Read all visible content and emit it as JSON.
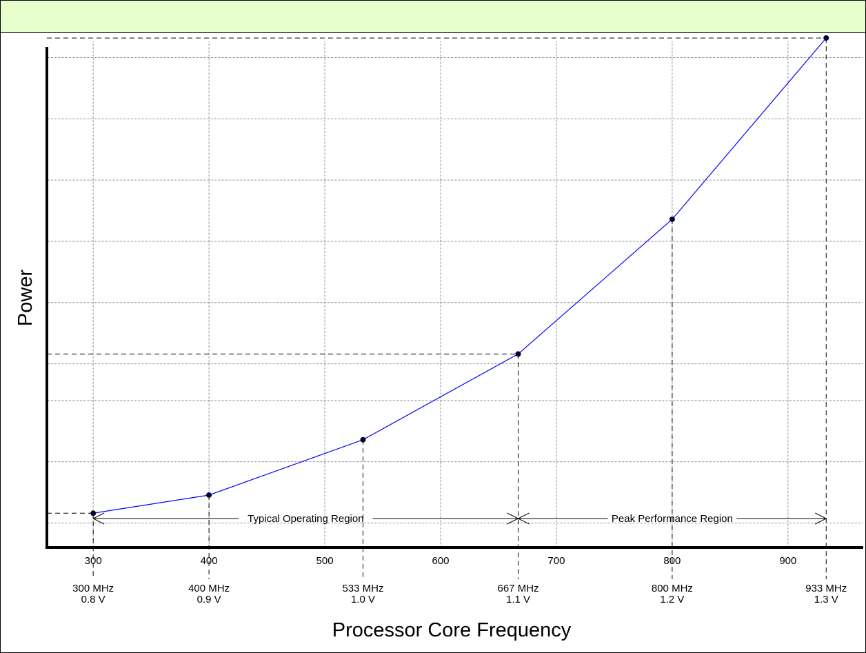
{
  "chart_data": {
    "type": "line",
    "xlabel": "Processor Core Frequency",
    "ylabel": "Power",
    "xlim": [
      260,
      965
    ],
    "ylim": [
      0,
      1.05
    ],
    "x_ticks": [
      300,
      400,
      500,
      600,
      700,
      800,
      900
    ],
    "y_gridlines": [
      0.05,
      0.175,
      0.3,
      0.375,
      0.5,
      0.625,
      0.75,
      0.875,
      1.0
    ],
    "grid": true,
    "line_color": "#0000ff",
    "series": [
      {
        "x": [
          300,
          400,
          533,
          667,
          800,
          933
        ],
        "y": [
          0.07,
          0.107,
          0.22,
          0.395,
          0.67,
          1.04
        ]
      }
    ],
    "operating_points": [
      {
        "freq": 300,
        "freq_label": "300 MHz",
        "volt_label": "0.8 V"
      },
      {
        "freq": 400,
        "freq_label": "400 MHz",
        "volt_label": "0.9 V"
      },
      {
        "freq": 533,
        "freq_label": "533 MHz",
        "volt_label": "1.0 V"
      },
      {
        "freq": 667,
        "freq_label": "667 MHz",
        "volt_label": "1.1 V"
      },
      {
        "freq": 800,
        "freq_label": "800 MHz",
        "volt_label": "1.2 V"
      },
      {
        "freq": 933,
        "freq_label": "933 MHz",
        "volt_label": "1.3 V"
      }
    ],
    "horizontal_markers": [
      {
        "from_x": 260,
        "to_x": 300,
        "y": 0.07
      },
      {
        "from_x": 260,
        "to_x": 667,
        "y": 0.395
      },
      {
        "from_x": 260,
        "to_x": 933,
        "y": 1.04
      }
    ],
    "regions": [
      {
        "label": "Typical Operating Region",
        "x_start": 300,
        "x_end": 667
      },
      {
        "label": "Peak Performance Region",
        "x_start": 667,
        "x_end": 933
      }
    ]
  }
}
